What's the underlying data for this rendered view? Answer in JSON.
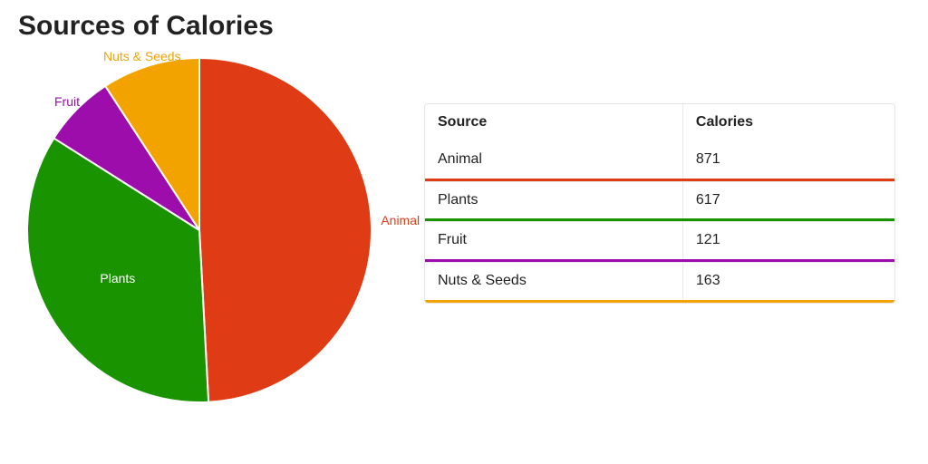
{
  "title": "Sources of Calories",
  "chart": {
    "type": "pie",
    "background_color": "#ffffff",
    "stroke_color": "#ffffff",
    "stroke_width": 2,
    "label_fontsize": 14,
    "slices": [
      {
        "label": "Animal",
        "value": 871,
        "color": "#df3c16",
        "label_color": "#df3c16"
      },
      {
        "label": "Plants",
        "value": 617,
        "color": "#199400",
        "label_color": "#ffffff"
      },
      {
        "label": "Fruit",
        "value": 121,
        "color": "#9d0dac",
        "label_color": "#9d0dac"
      },
      {
        "label": "Nuts & Seeds",
        "value": 163,
        "color": "#f2a300",
        "label_color": "#f2a300"
      }
    ]
  },
  "table": {
    "columns": [
      "Source",
      "Calories"
    ],
    "header_fontweight": 700,
    "border_color": "#e4e4e4",
    "underline_height": 3,
    "rows": [
      {
        "source": "Animal",
        "calories": 871,
        "underline_color": "#df3c16"
      },
      {
        "source": "Plants",
        "calories": 617,
        "underline_color": "#199400"
      },
      {
        "source": "Fruit",
        "calories": 121,
        "underline_color": "#9d0dac"
      },
      {
        "source": "Nuts & Seeds",
        "calories": 163,
        "underline_color": "#f2a300"
      }
    ]
  }
}
